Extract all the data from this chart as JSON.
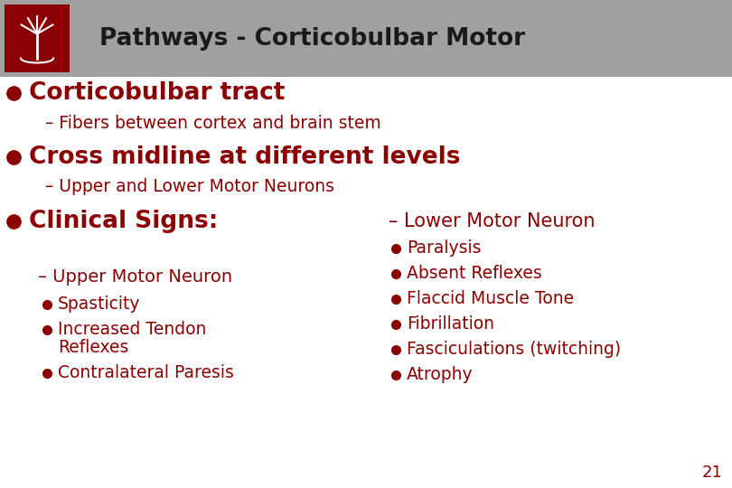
{
  "title": "Pathways - Corticobulbar Motor",
  "title_color": "#1a1a1a",
  "header_bg": "#A0A0A0",
  "body_bg": "#FFFFFF",
  "dark_red": "#8B0000",
  "bullet_color": "#8B0000",
  "slide_number": "21",
  "bullet1_text": "Corticobulbar tract",
  "bullet1_sub": "Fibers between cortex and brain stem",
  "bullet2_text": "Cross midline at different levels",
  "bullet2_sub": "Upper and Lower Motor Neurons",
  "bullet3_text": "Clinical Signs:",
  "umn_header": "Upper Motor Neuron",
  "umn_items": [
    "Spasticity",
    "Increased Tendon\nReflexes",
    "Contralateral Paresis"
  ],
  "lmn_header": "Lower Motor Neuron",
  "lmn_items": [
    "Paralysis",
    "Absent Reflexes",
    "Flaccid Muscle Tone",
    "Fibrillation",
    "Fasciculations (twitching)",
    "Atrophy"
  ]
}
